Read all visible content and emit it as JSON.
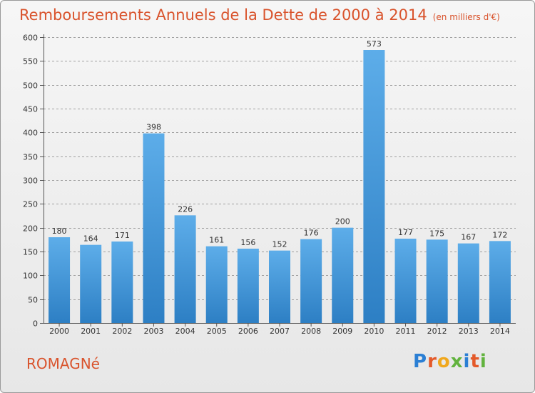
{
  "header": {
    "title": "Remboursements Annuels de la Dette de 2000 à 2014",
    "unit": "(en milliers d'€)"
  },
  "footer": {
    "commune": "ROMAGNé",
    "logo": {
      "p": "P",
      "r": "r",
      "o": "o",
      "x": "x",
      "i1": "i",
      "t": "t",
      "i2": "i"
    }
  },
  "colors": {
    "bar_top": "#5dade9",
    "bar_bottom": "#2d7fc4",
    "title": "#d9532c",
    "grid": "#a0a0a0"
  },
  "chart_data": {
    "type": "bar",
    "title": "Remboursements Annuels de la Dette de 2000 à 2014",
    "xlabel": "",
    "ylabel": "",
    "ylim": [
      0,
      600
    ],
    "yticks": [
      0,
      50,
      100,
      150,
      200,
      250,
      300,
      350,
      400,
      450,
      500,
      550,
      600
    ],
    "categories": [
      "2000",
      "2001",
      "2002",
      "2003",
      "2004",
      "2005",
      "2006",
      "2007",
      "2008",
      "2009",
      "2010",
      "2011",
      "2012",
      "2013",
      "2014"
    ],
    "values": [
      180,
      164,
      171,
      398,
      226,
      161,
      156,
      152,
      176,
      200,
      573,
      177,
      175,
      167,
      172
    ]
  }
}
